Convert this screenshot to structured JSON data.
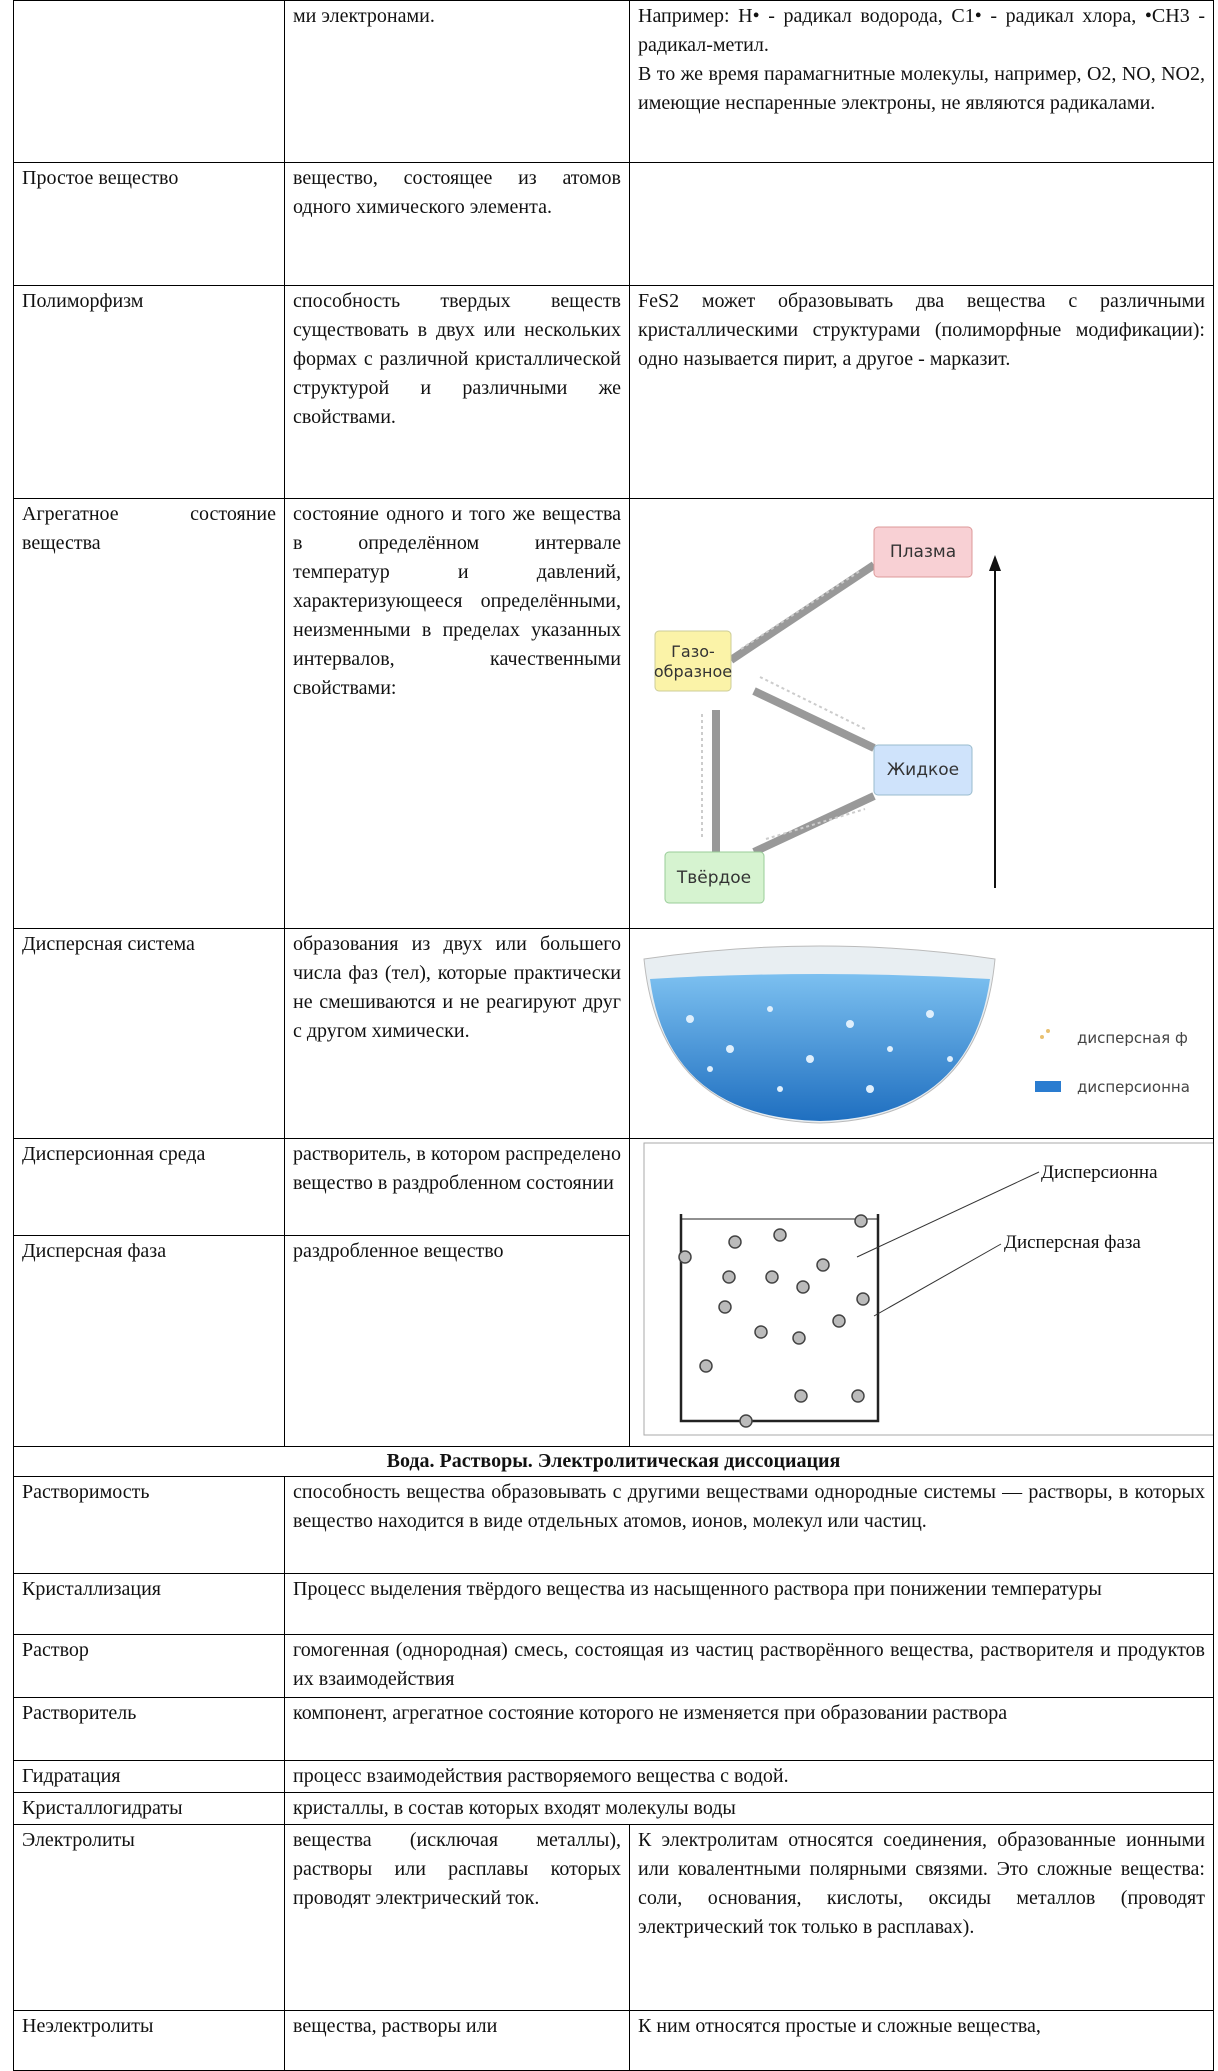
{
  "table": {
    "rows": [
      {
        "definition": "ми электронами.",
        "example": [
          "Например: H• - радикал водорода, C1• - радикал хлора, •CH3 - радикал-метил.",
          "В то же время парамагнитные молекулы, например, O2, NO, NO2, имеющие неспаренные электроны, не являются радикалами."
        ]
      },
      {
        "term": "Простое вещество",
        "definition": "вещество, состоящее из атомов одного химического элемента."
      },
      {
        "term": "Полиморфизм",
        "definition": "способность твердых веществ существовать в двух или нескольких формах с различной кристаллической структурой и различными же свойствами.",
        "example": "FeS2 может образовывать два вещества с различными кристаллическими структурами (полиморфные модификации): одно называется пирит, а другое - марказит."
      },
      {
        "term": "Агрегатное состояние вещества",
        "definition": "состояние одного и того же вещества в определённом интервале температур и давлений, характеризующееся определёнными, неизменными в пределах указанных интервалов, качественными свойствами:"
      },
      {
        "term": "Дисперсная система",
        "definition": "образования из двух или большего числа фаз (тел), которые практически не смешиваются и не реагируют друг с другом химически."
      },
      {
        "term": "Дисперсионная среда",
        "definition": "растворитель, в котором распределено вещество в раздробленном состоянии"
      },
      {
        "term": "Дисперсная фаза",
        "definition": "раздробленное вещество"
      }
    ],
    "section": {
      "heading": "Вода. Растворы. Электролитическая диссоциация",
      "rows": [
        {
          "term": "Растворимость",
          "definition": "способность вещества образовывать с другими веществами однородные системы — растворы, в которых вещество находится в виде отдельных атомов, ионов, молекул или частиц."
        },
        {
          "term": "Кристаллизация",
          "definition": "Процесс выделения твёрдого вещества из насыщенного раствора при понижении температуры"
        },
        {
          "term": "Раствор",
          "definition": "гомогенная (однородная) смесь, состоящая из частиц растворённого вещества, растворителя и продуктов их взаимодействия"
        },
        {
          "term": "Растворитель",
          "definition": "компонент, агрегатное состояние которого не изменяется при образовании раствора"
        },
        {
          "term": "Гидратация",
          "definition": "процесс взаимодействия растворяемого вещества с водой."
        },
        {
          "term": "Кристаллогидраты",
          "definition": "кристаллы, в состав которых входят молекулы воды"
        },
        {
          "term": "Электролиты",
          "definition": "вещества (исключая металлы), растворы или расплавы которых проводят электрический ток.",
          "example": "К электролитам относятся соединения, образованные ионными или ковалентными полярными связями. Это сложные вещества: соли, основания, кислоты, оксиды металлов (проводят электрический ток только в расплавах)."
        },
        {
          "term": "Неэлектролиты",
          "definition": "вещества, растворы или",
          "example": "К ним относятся простые и сложные вещества,"
        }
      ]
    }
  },
  "figures": {
    "states": {
      "plasma": "Плазма",
      "gas": [
        "Газо-",
        "образное"
      ],
      "liquid": "Жидкое",
      "solid": "Твёрдое"
    },
    "bowl": {
      "legend": [
        "дисперсная ф",
        "дисперсионна"
      ]
    },
    "beaker": {
      "labels": [
        "Дисперсионна",
        "Дисперсная фаза"
      ]
    }
  }
}
